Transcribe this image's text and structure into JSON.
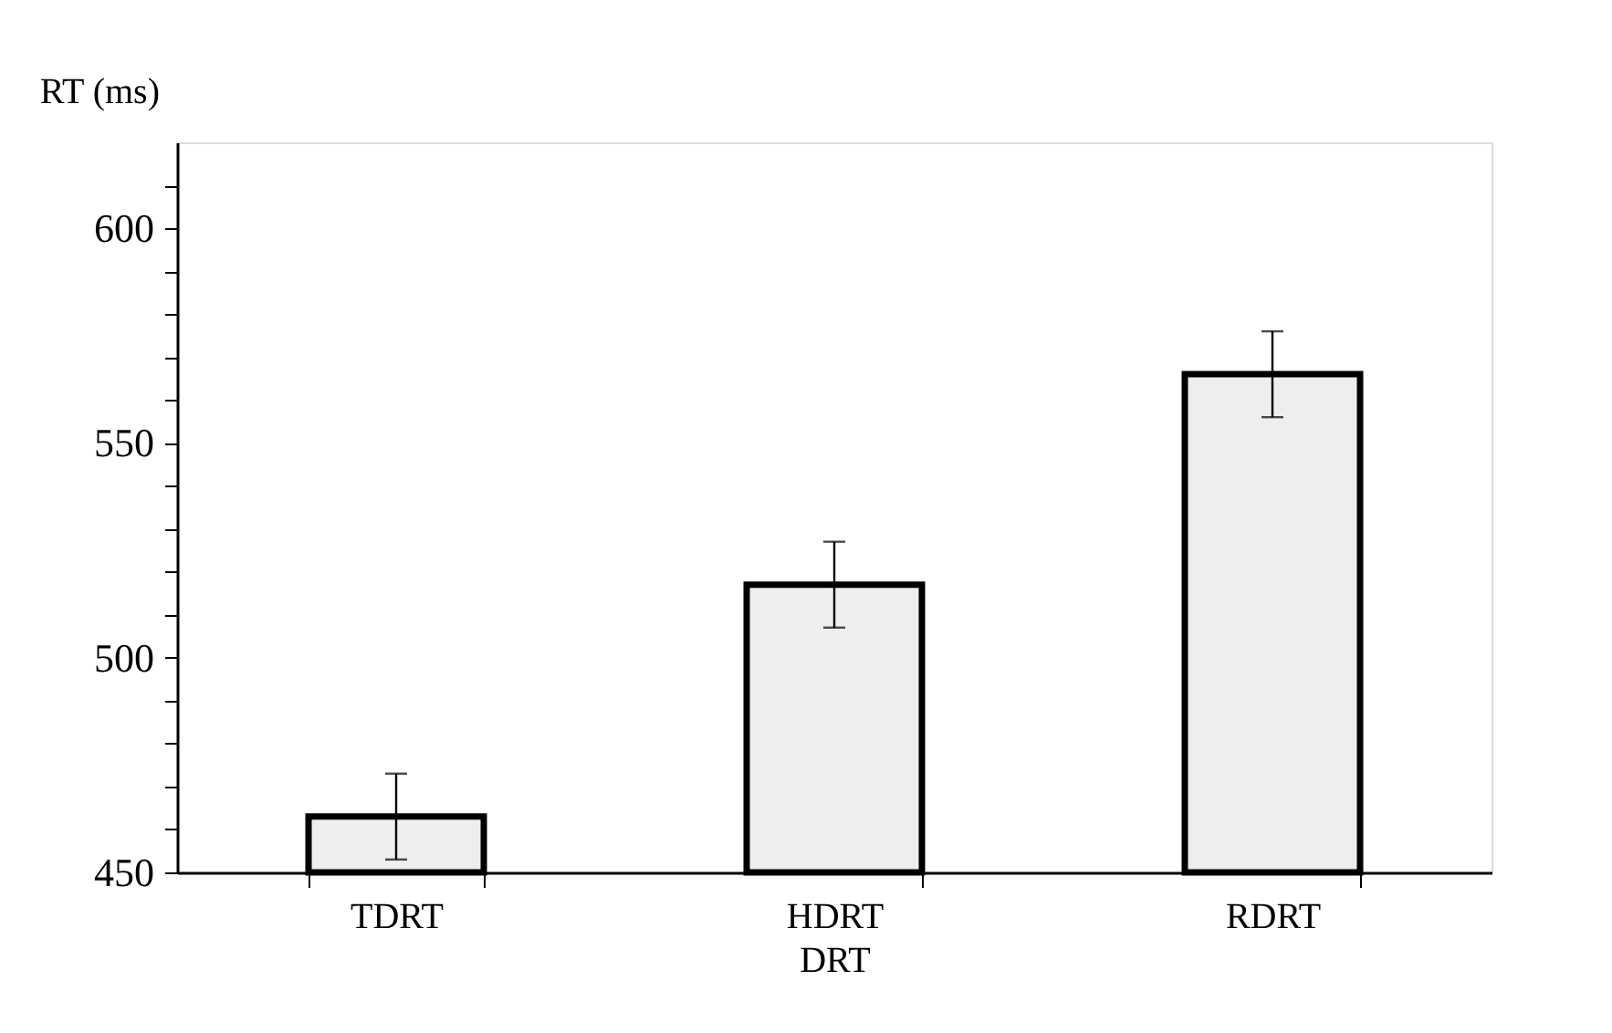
{
  "chart_data": {
    "type": "bar",
    "categories": [
      "TDRT",
      "HDRT",
      "RDRT"
    ],
    "values": [
      463,
      517,
      566
    ],
    "errors": [
      10,
      10,
      10
    ],
    "color": "#eeeeee",
    "xlabel": "DRT",
    "ylabel": "RT (ms)",
    "ylim": [
      450,
      620
    ],
    "yticks": [
      450,
      {
        "value": 460,
        "label": null
      },
      {
        "value": 470,
        "label": null
      },
      {
        "value": 480,
        "label": null
      },
      {
        "value": 490,
        "label": null
      },
      500,
      {
        "value": 510,
        "label": null
      },
      {
        "value": 520,
        "label": null
      },
      {
        "value": 530,
        "label": null
      },
      {
        "value": 540,
        "label": null
      },
      550,
      {
        "value": 560,
        "label": null
      },
      {
        "value": 570,
        "label": null
      },
      {
        "value": 580,
        "label": null
      },
      {
        "value": 590,
        "label": null
      },
      600,
      {
        "value": 610,
        "label": null
      }
    ],
    "grid": false,
    "legend": false
  }
}
